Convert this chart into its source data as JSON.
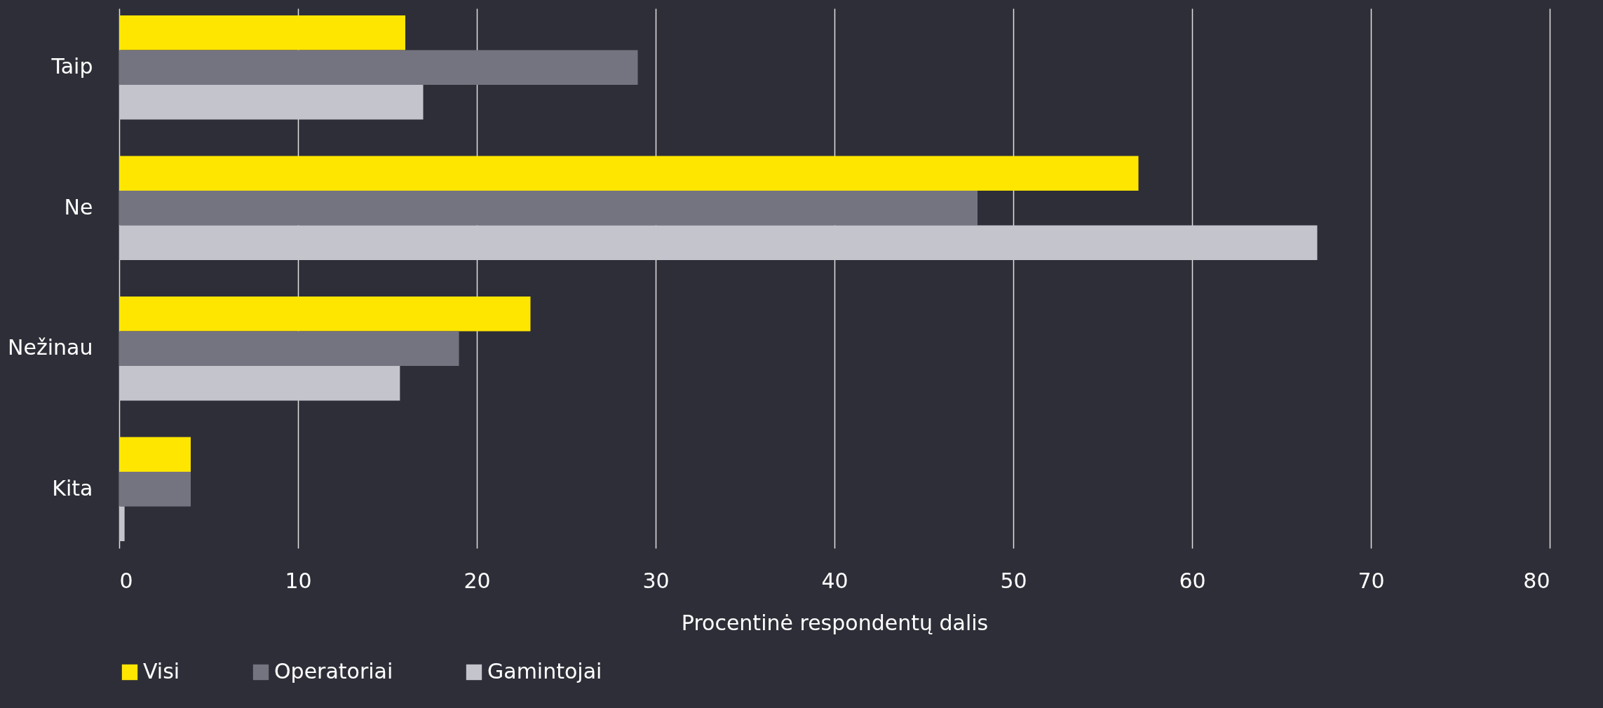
{
  "chart_data": {
    "type": "bar",
    "orientation": "horizontal",
    "xlabel": "Procentinė respondentų dalis",
    "categories": [
      "Taip",
      "Ne",
      "Nežinau",
      "Kita"
    ],
    "series": [
      {
        "name": "Visi",
        "color": "#ffe600",
        "values": [
          16,
          57,
          23,
          4
        ]
      },
      {
        "name": "Operatoriai",
        "color": "#747480",
        "values": [
          29,
          48,
          19,
          4
        ]
      },
      {
        "name": "Gamintojai",
        "color": "#c4c4cd",
        "values": [
          17,
          67,
          15.7,
          0.3
        ]
      }
    ],
    "xlim": [
      0,
      80
    ],
    "xticks": [
      0,
      10,
      20,
      30,
      40,
      50,
      60,
      70,
      80
    ],
    "grid": "x",
    "legend": "bottom"
  }
}
